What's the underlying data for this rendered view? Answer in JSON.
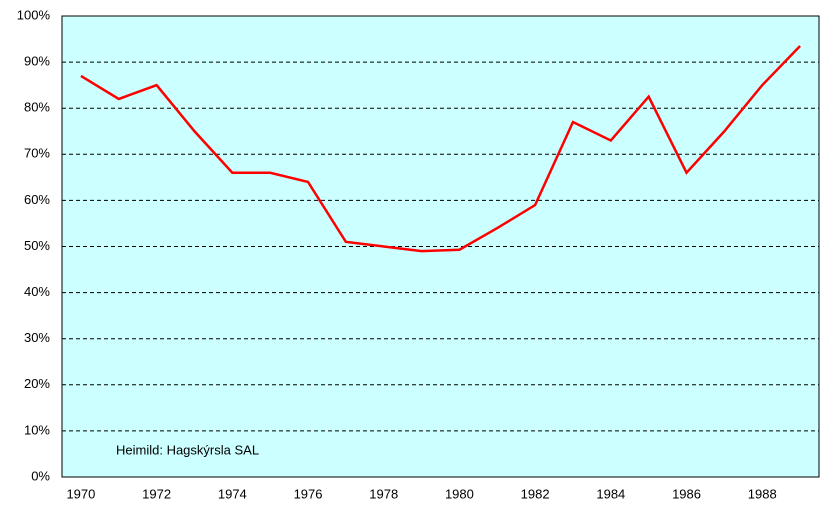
{
  "chart_data": {
    "type": "line",
    "annotation": "Heimild: Hagskýrsla SAL",
    "categories": [
      "1970",
      null,
      "1972",
      null,
      "1974",
      null,
      "1976",
      null,
      "1978",
      null,
      "1980",
      null,
      "1982",
      null,
      "1984",
      null,
      "1986",
      null,
      "1988",
      null
    ],
    "series": [
      {
        "color": "#ff0000",
        "values": [
          87,
          82,
          85,
          75,
          66,
          66,
          64,
          51,
          50,
          49,
          49.3,
          54,
          59,
          77,
          73,
          82.5,
          66,
          75,
          85,
          93.5
        ]
      }
    ],
    "ylim": [
      0,
      100
    ],
    "yticks": [
      {
        "value": 0,
        "label": "0%"
      },
      {
        "value": 10,
        "label": "10%"
      },
      {
        "value": 20,
        "label": "20%"
      },
      {
        "value": 30,
        "label": "30%"
      },
      {
        "value": 40,
        "label": "40%"
      },
      {
        "value": 50,
        "label": "50%"
      },
      {
        "value": 60,
        "label": "60%"
      },
      {
        "value": 70,
        "label": "70%"
      },
      {
        "value": 80,
        "label": "80%"
      },
      {
        "value": 90,
        "label": "90%"
      },
      {
        "value": 100,
        "label": "100%"
      }
    ],
    "grid": true,
    "background": "#ccffff"
  }
}
